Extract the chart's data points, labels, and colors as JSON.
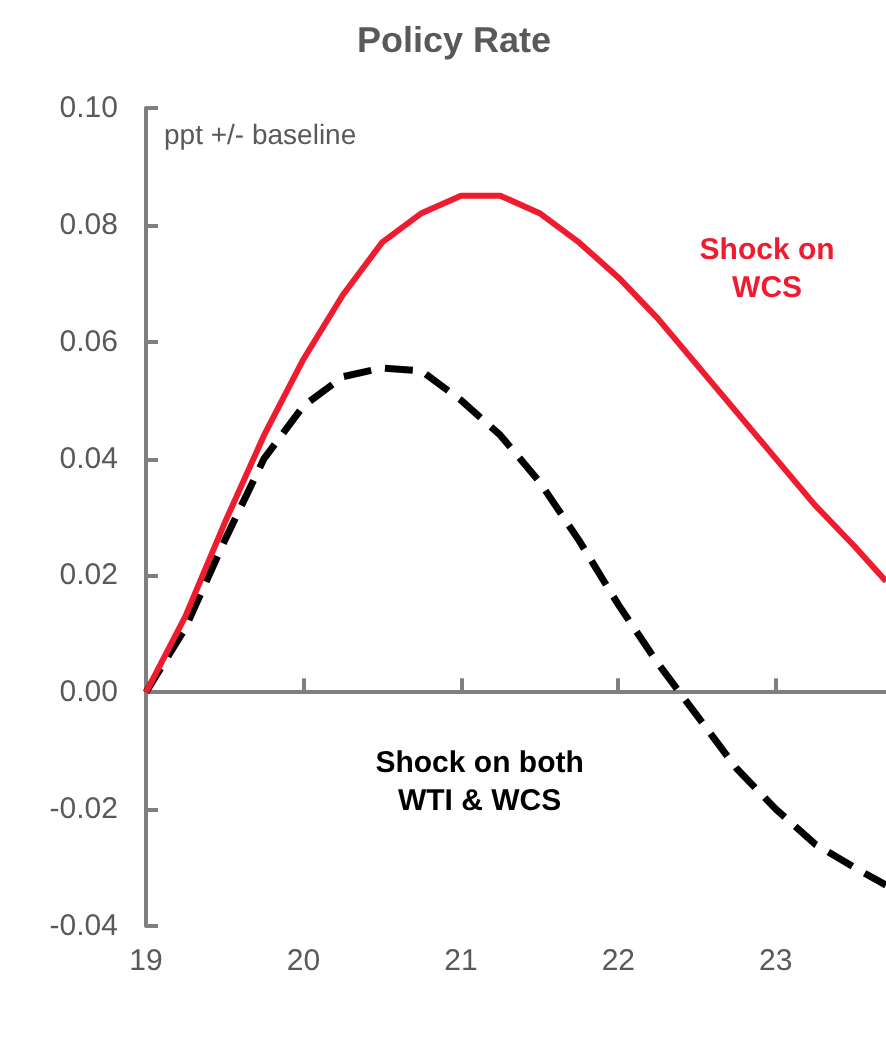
{
  "chart_data": {
    "type": "line",
    "title": "Policy Rate",
    "ylabel": "ppt +/- baseline",
    "x": [
      19,
      19.25,
      19.5,
      19.75,
      20,
      20.25,
      20.5,
      20.75,
      21,
      21.25,
      21.5,
      21.75,
      22,
      22.25,
      22.5,
      22.75,
      23,
      23.25,
      23.5,
      23.7
    ],
    "series": [
      {
        "name": "Shock on\nWCS",
        "color": "#ee1c2e",
        "line_style": "solid",
        "values": [
          0,
          0.013,
          0.029,
          0.044,
          0.057,
          0.068,
          0.077,
          0.082,
          0.085,
          0.085,
          0.082,
          0.077,
          0.071,
          0.064,
          0.056,
          0.048,
          0.04,
          0.032,
          0.025,
          0.019
        ]
      },
      {
        "name": "Shock on both\nWTI & WCS",
        "color": "#000000",
        "line_style": "dashed",
        "values": [
          0,
          0.011,
          0.026,
          0.04,
          0.049,
          0.054,
          0.0555,
          0.055,
          0.05,
          0.044,
          0.036,
          0.026,
          0.015,
          0.005,
          -0.004,
          -0.013,
          -0.02,
          -0.026,
          -0.03,
          -0.033
        ]
      }
    ],
    "xlim": [
      19,
      23.7
    ],
    "xticks": [
      19,
      20,
      21,
      22,
      23
    ],
    "ylim": [
      -0.04,
      0.1
    ],
    "yticks": [
      {
        "value": -0.04,
        "label": "-0.04"
      },
      {
        "value": -0.02,
        "label": "-0.02"
      },
      {
        "value": 0,
        "label": "0.00"
      },
      {
        "value": 0.02,
        "label": "0.02"
      },
      {
        "value": 0.04,
        "label": "0.04"
      },
      {
        "value": 0.06,
        "label": "0.06"
      },
      {
        "value": 0.08,
        "label": "0.08"
      },
      {
        "value": 0.1,
        "label": "0.10"
      }
    ],
    "legend": false,
    "marker": "none"
  }
}
